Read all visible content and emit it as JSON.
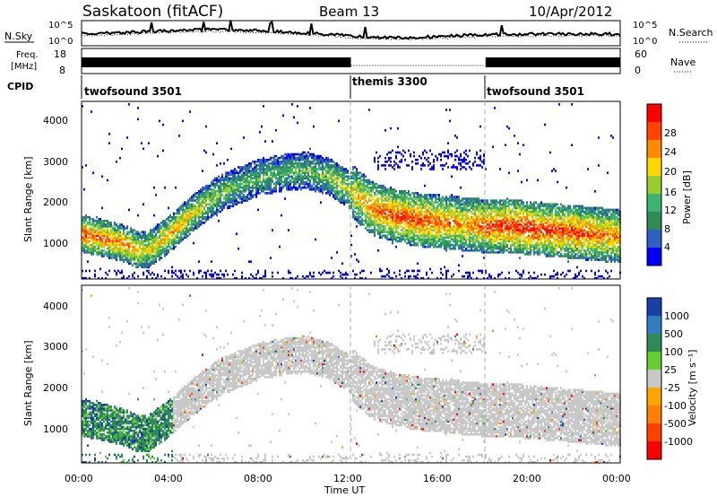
{
  "header": {
    "site_title": "Saskatoon (fitACF)",
    "beam": "Beam 13",
    "date": "10/Apr/2012"
  },
  "noise_panel": {
    "left_label": "N.Sky",
    "right_label": "N.Search",
    "left_ticks": [
      "10^5",
      "10^0"
    ],
    "right_ticks": [
      "10^5",
      "10^0"
    ]
  },
  "freq_panel": {
    "left_label_line1": "Freq.",
    "left_label_line2": "[MHz]",
    "left_ticks": [
      "18",
      "8"
    ],
    "right_label": "Nave",
    "right_ticks": [
      "60",
      "0"
    ]
  },
  "cpid_panel": {
    "label": "CPID",
    "segments": [
      {
        "name": "twofsound 3501",
        "start_h": 0,
        "end_h": 12
      },
      {
        "name": "themis 3300",
        "start_h": 12,
        "end_h": 18
      },
      {
        "name": "twofsound 3501",
        "start_h": 18,
        "end_h": 24
      }
    ]
  },
  "power_panel": {
    "ylabel": "Slant Range [km]",
    "yticks": [
      "1000",
      "2000",
      "3000",
      "4000"
    ],
    "colorbar_label": "Power [dB]",
    "colorbar_ticks": [
      "4",
      "8",
      "12",
      "16",
      "20",
      "24",
      "28"
    ],
    "colors": [
      "#0000ff",
      "#3060c0",
      "#2e8b57",
      "#3cb371",
      "#9acd32",
      "#ffd700",
      "#ff8c00",
      "#ff4500",
      "#ff0000"
    ]
  },
  "velocity_panel": {
    "ylabel": "Slant Range [km]",
    "yticks": [
      "1000",
      "2000",
      "3000",
      "4000"
    ],
    "colorbar_label": "Velocity [m s⁻¹]",
    "colorbar_ticks": [
      "1000",
      "500",
      "100",
      "25",
      "-25",
      "-100",
      "-500",
      "-1000"
    ],
    "colors": [
      "#1a3fa8",
      "#2f7fc0",
      "#2e8b57",
      "#66cd33",
      "#c8c8c8",
      "#ffa500",
      "#ff7f00",
      "#ff4000",
      "#ff0000"
    ]
  },
  "x_axis": {
    "label": "Time UT",
    "ticks": [
      "00:00",
      "04:00",
      "08:00",
      "12:00",
      "16:00",
      "20:00",
      "00:00"
    ]
  },
  "chart_data": [
    {
      "type": "heatmap",
      "title": "Saskatoon (fitACF)   Beam 13   10/Apr/2012",
      "panel": "power",
      "xlabel": "Time UT",
      "ylabel": "Slant Range [km]",
      "xlim_hours": [
        0,
        24
      ],
      "ylim_km": [
        180,
        4500
      ],
      "zlabel": "Power [dB]",
      "zlim": [
        0,
        30
      ],
      "backscatter_band": {
        "time_h": [
          0,
          1,
          2,
          2.5,
          3,
          4,
          5,
          6,
          7,
          8,
          9,
          10,
          11,
          12,
          13,
          14,
          15,
          16,
          17,
          18,
          19,
          20,
          21,
          22,
          23,
          24
        ],
        "center_range_km": [
          1250,
          1150,
          1000,
          850,
          900,
          1300,
          1800,
          2200,
          2450,
          2650,
          2750,
          2800,
          2650,
          2300,
          1850,
          1700,
          1600,
          1550,
          1500,
          1450,
          1450,
          1400,
          1350,
          1300,
          1250,
          1200
        ],
        "peak_power_db": [
          26,
          24,
          22,
          20,
          18,
          22,
          18,
          14,
          12,
          12,
          12,
          12,
          14,
          18,
          24,
          26,
          26,
          24,
          22,
          26,
          28,
          28,
          26,
          26,
          24,
          22
        ]
      }
    },
    {
      "type": "heatmap",
      "panel": "velocity",
      "xlabel": "Time UT",
      "ylabel": "Slant Range [km]",
      "xlim_hours": [
        0,
        24
      ],
      "ylim_km": [
        180,
        4500
      ],
      "zlabel": "Velocity [m s⁻¹]",
      "zlim": [
        -1000,
        1000
      ],
      "note_values": "ground scatter (grey, |v| < 25) dominates; positive velocities near 00:00-04:00"
    }
  ]
}
